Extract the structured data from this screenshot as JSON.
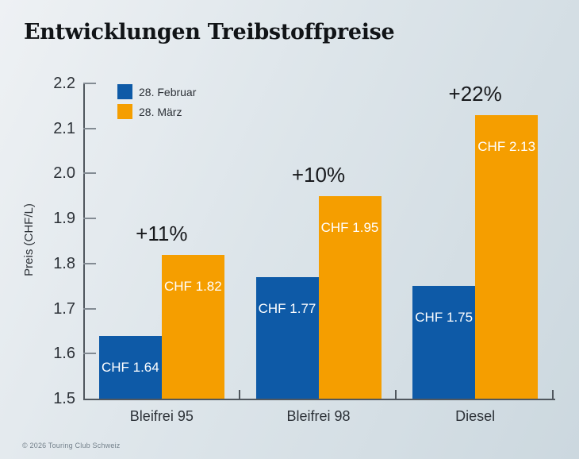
{
  "footer": {
    "copyright": "© 2026 Touring Club Schweiz"
  },
  "chart_data": {
    "type": "bar",
    "title": "Entwicklungen Treibstoffpreise",
    "xlabel": "",
    "ylabel": "Preis (CHF/L)",
    "ylim": [
      1.5,
      2.2
    ],
    "yticks": [
      1.5,
      1.6,
      1.7,
      1.8,
      1.9,
      2.0,
      2.1,
      2.2
    ],
    "ytick_labels": [
      "1.5",
      "1.6",
      "1.7",
      "1.8",
      "1.9",
      "2.0",
      "2.1",
      "2.2"
    ],
    "categories": [
      "Bleifrei 95",
      "Bleifrei 98",
      "Diesel"
    ],
    "series": [
      {
        "name": "28. Februar",
        "color": "#0e5aa7",
        "values": [
          1.64,
          1.77,
          1.75
        ],
        "bar_labels": [
          "CHF 1.64",
          "CHF 1.77",
          "CHF 1.75"
        ]
      },
      {
        "name": "28. März",
        "color": "#f59e00",
        "values": [
          1.82,
          1.95,
          2.13
        ],
        "bar_labels": [
          "CHF 1.82",
          "CHF 1.95",
          "CHF 2.13"
        ]
      }
    ],
    "annotations": {
      "pct_change": [
        "+11%",
        "+10%",
        "+22%"
      ]
    },
    "legend_position": "top-left",
    "grid": false,
    "colors": {
      "axis": "#50575e",
      "tick": "#838b93",
      "text": "#2c3137",
      "bar_label": "#ffffff"
    }
  }
}
